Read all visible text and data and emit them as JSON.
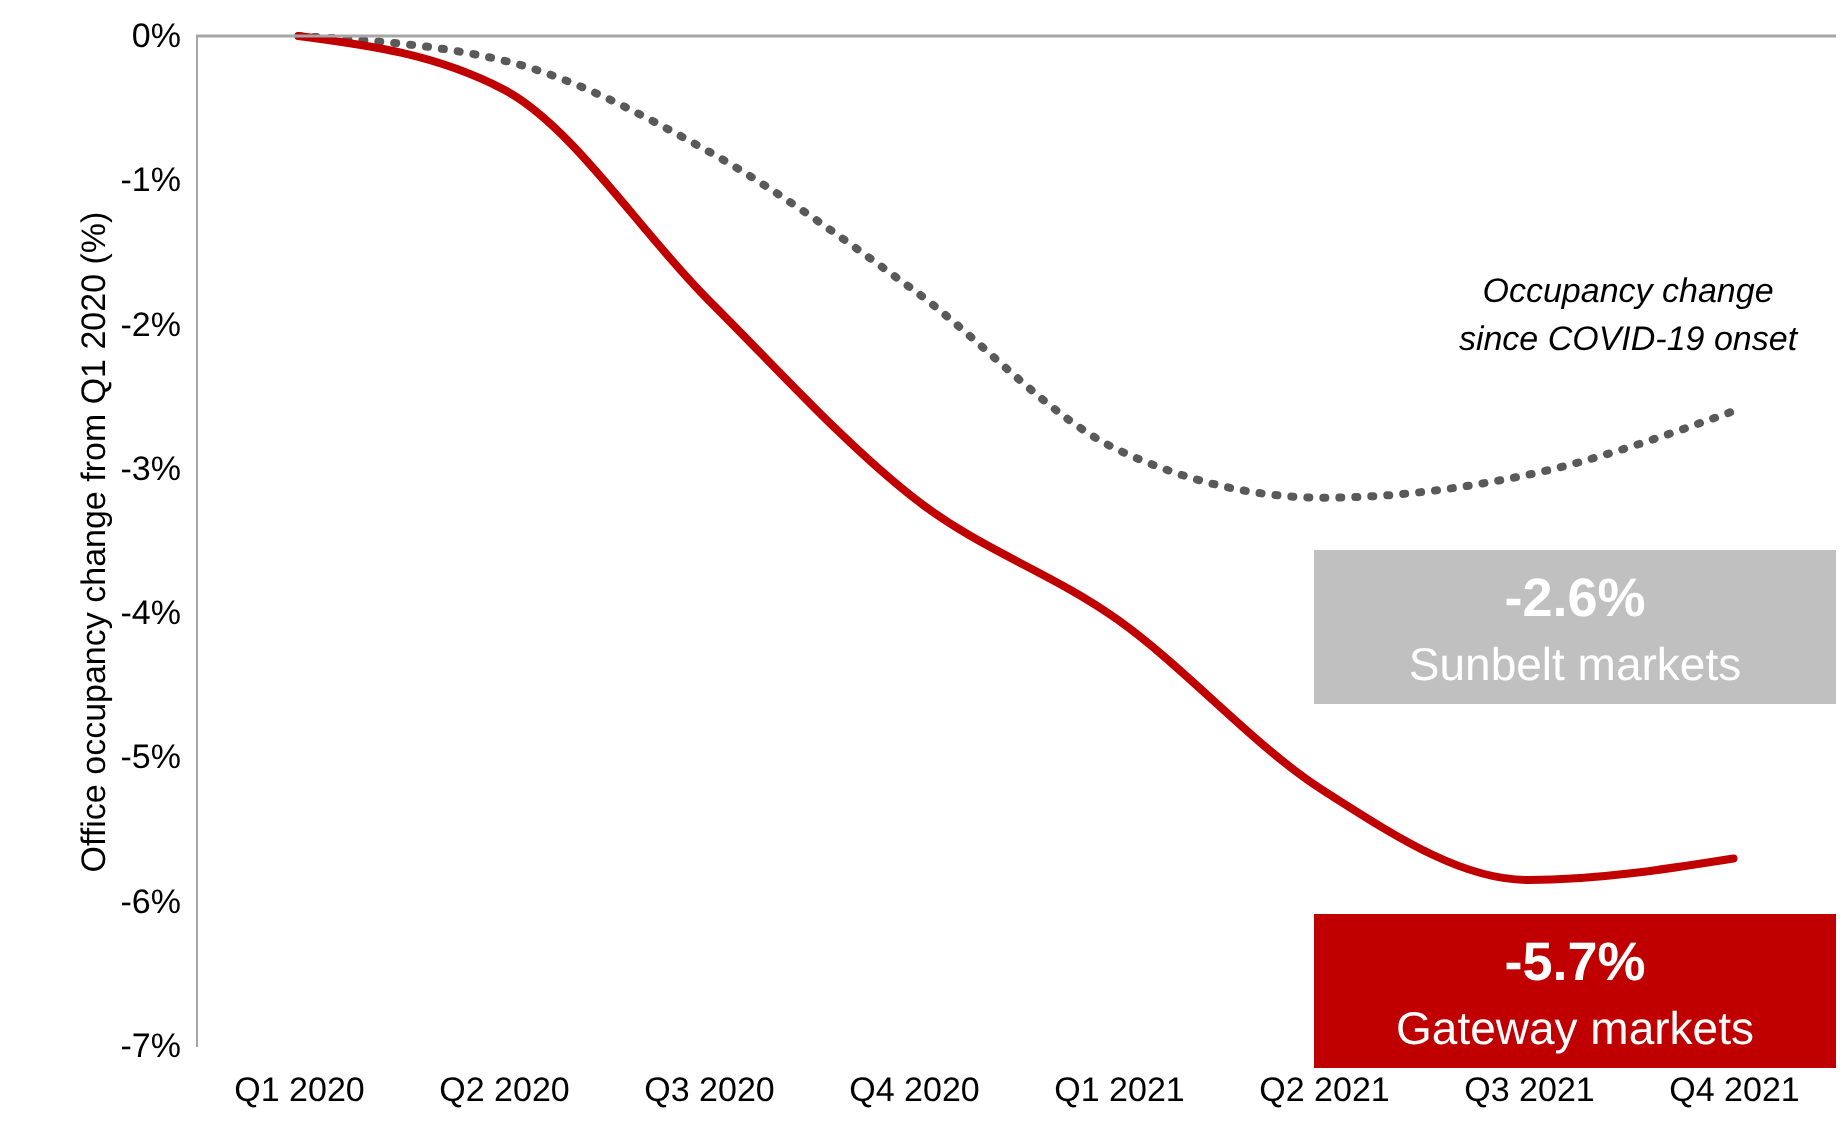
{
  "chart_data": {
    "type": "line",
    "ylabel": "Office occupancy change from Q1 2020 (%)",
    "categories": [
      "Q1 2020",
      "Q2 2020",
      "Q3 2020",
      "Q4 2020",
      "Q1 2021",
      "Q2 2021",
      "Q3 2021",
      "Q4 2021"
    ],
    "series": [
      {
        "name": "Sunbelt markets",
        "color": "#595959",
        "line_style": "dotted",
        "values": [
          0,
          -0.17,
          -0.8,
          -1.76,
          -2.87,
          -3.2,
          -3.04,
          -2.6
        ]
      },
      {
        "name": "Gateway markets",
        "color": "#c00000",
        "line_style": "solid",
        "values": [
          0,
          -0.37,
          -1.83,
          -3.2,
          -4.05,
          -5.23,
          -5.85,
          -5.7
        ]
      }
    ],
    "ylim": [
      -7,
      0
    ],
    "yticks": [
      {
        "value": 0,
        "label": "0%"
      },
      {
        "value": -1,
        "label": "-1%"
      },
      {
        "value": -2,
        "label": "-2%"
      },
      {
        "value": -3,
        "label": "-3%"
      },
      {
        "value": -4,
        "label": "-4%"
      },
      {
        "value": -5,
        "label": "-5%"
      },
      {
        "value": -6,
        "label": "-6%"
      },
      {
        "value": -7,
        "label": "-7%"
      }
    ],
    "ref_lines": [
      {
        "axis": "y",
        "value": 0,
        "color": "#a6a6a6"
      }
    ],
    "annotations": [
      "Occupancy change\nsince COVID-19 onset",
      "-2.6%",
      "-5.7%"
    ],
    "grid": false,
    "legend": "bottom right"
  }
}
